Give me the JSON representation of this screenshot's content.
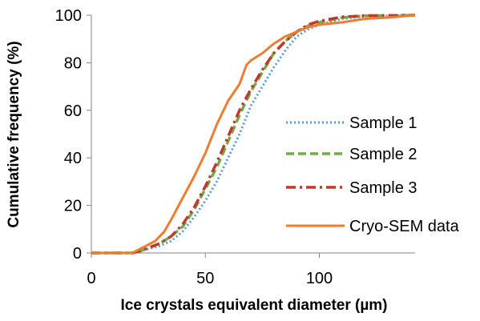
{
  "chart_data": {
    "type": "line",
    "title": "",
    "xlabel": "Ice crystals equivalent diameter (µm)",
    "ylabel": "Cumulative frequency (%)",
    "xlim": [
      0,
      142
    ],
    "ylim": [
      0,
      100
    ],
    "x_ticks": [
      0,
      50,
      100
    ],
    "y_ticks": [
      0,
      20,
      40,
      60,
      80,
      100
    ],
    "x_tick_labels": [
      "0",
      "50",
      "100"
    ],
    "y_tick_labels": [
      "0",
      "20",
      "40",
      "60",
      "80",
      "100"
    ],
    "grid": false,
    "legend_position": "right",
    "series": [
      {
        "name": "Sample 1",
        "color": "#5b9bd5",
        "dash": "dotted",
        "points": [
          [
            0,
            0
          ],
          [
            18,
            0
          ],
          [
            22,
            1
          ],
          [
            30,
            3
          ],
          [
            35,
            5
          ],
          [
            40,
            9
          ],
          [
            45,
            15
          ],
          [
            50,
            22
          ],
          [
            55,
            30
          ],
          [
            60,
            40
          ],
          [
            65,
            50
          ],
          [
            70,
            62
          ],
          [
            75,
            70
          ],
          [
            80,
            78
          ],
          [
            85,
            85
          ],
          [
            90,
            91
          ],
          [
            95,
            94
          ],
          [
            100,
            96
          ],
          [
            110,
            98.5
          ],
          [
            120,
            99.5
          ],
          [
            142,
            100
          ]
        ]
      },
      {
        "name": "Sample 2",
        "color": "#70ad47",
        "dash": "dashed",
        "points": [
          [
            0,
            0
          ],
          [
            18,
            0
          ],
          [
            22,
            1
          ],
          [
            30,
            4
          ],
          [
            35,
            7
          ],
          [
            40,
            11
          ],
          [
            45,
            18
          ],
          [
            50,
            27
          ],
          [
            55,
            36
          ],
          [
            60,
            47
          ],
          [
            65,
            58
          ],
          [
            70,
            68
          ],
          [
            75,
            76
          ],
          [
            80,
            84
          ],
          [
            85,
            89
          ],
          [
            90,
            93
          ],
          [
            95,
            95.5
          ],
          [
            100,
            97
          ],
          [
            110,
            99
          ],
          [
            120,
            99.8
          ],
          [
            142,
            100
          ]
        ]
      },
      {
        "name": "Sample 3",
        "color": "#c0392b",
        "dash": "dashdot",
        "points": [
          [
            0,
            0
          ],
          [
            18,
            0
          ],
          [
            22,
            1
          ],
          [
            30,
            4
          ],
          [
            35,
            7
          ],
          [
            40,
            12
          ],
          [
            45,
            19
          ],
          [
            50,
            28
          ],
          [
            55,
            38
          ],
          [
            60,
            49
          ],
          [
            65,
            60
          ],
          [
            70,
            69
          ],
          [
            75,
            77
          ],
          [
            80,
            84
          ],
          [
            85,
            89
          ],
          [
            90,
            93
          ],
          [
            95,
            96
          ],
          [
            100,
            97.5
          ],
          [
            110,
            99.3
          ],
          [
            120,
            99.8
          ],
          [
            142,
            100
          ]
        ]
      },
      {
        "name": "Cryo-SEM data",
        "color": "#ed7d31",
        "dash": "solid",
        "points": [
          [
            0,
            0
          ],
          [
            18,
            0
          ],
          [
            22,
            2
          ],
          [
            28,
            5
          ],
          [
            32,
            9
          ],
          [
            35,
            14
          ],
          [
            40,
            23
          ],
          [
            45,
            32
          ],
          [
            50,
            42
          ],
          [
            55,
            54
          ],
          [
            60,
            64
          ],
          [
            65,
            71
          ],
          [
            68,
            79
          ],
          [
            70,
            81
          ],
          [
            75,
            84
          ],
          [
            80,
            88
          ],
          [
            85,
            91
          ],
          [
            90,
            93
          ],
          [
            95,
            95
          ],
          [
            100,
            96
          ],
          [
            110,
            97
          ],
          [
            120,
            98.5
          ],
          [
            130,
            99
          ],
          [
            142,
            100
          ]
        ]
      }
    ]
  }
}
